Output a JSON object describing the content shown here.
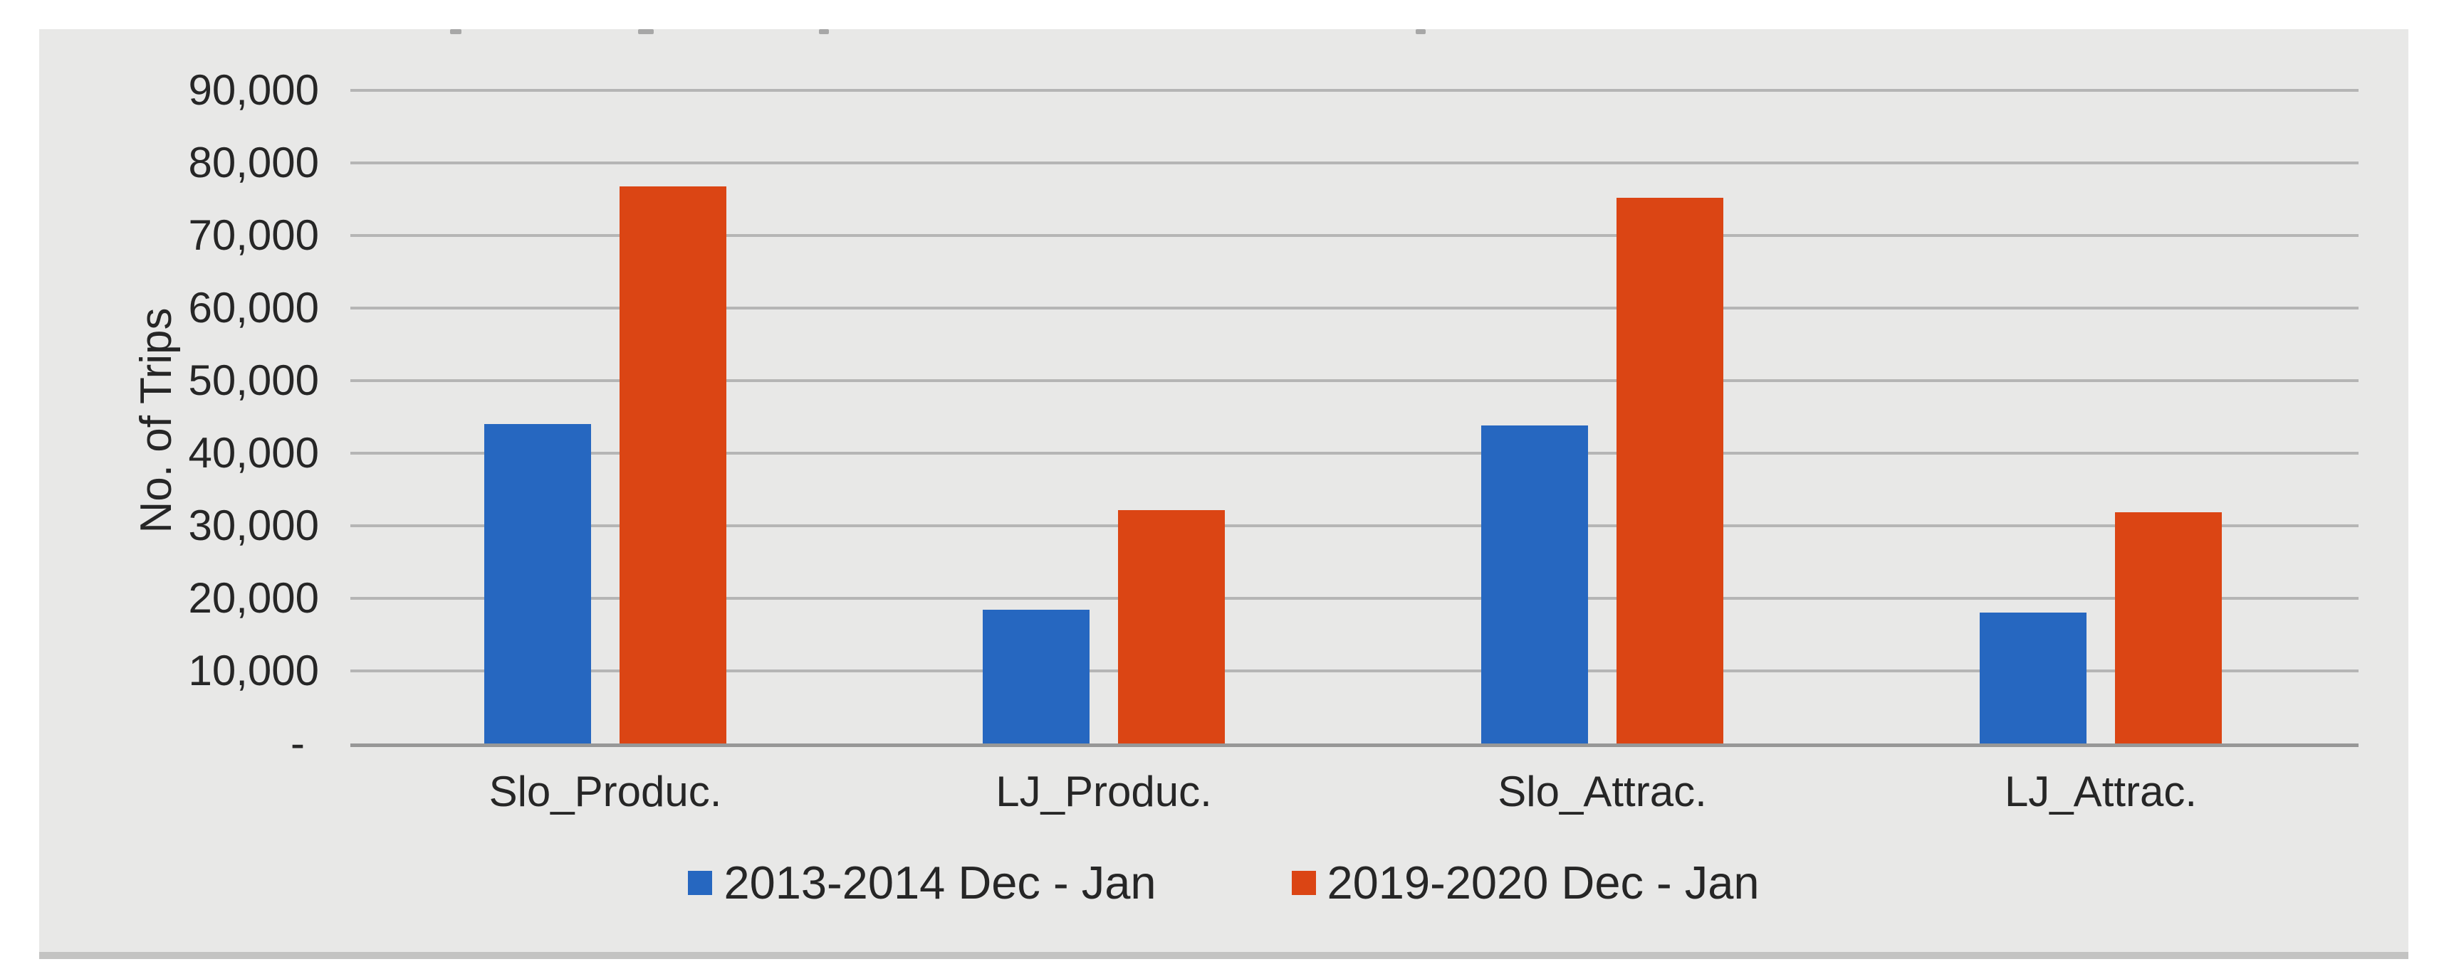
{
  "chart_data": {
    "type": "bar",
    "title": "",
    "categories": [
      "Slo_Produc.",
      "LJ_Produc.",
      "Slo_Attrac.",
      "LJ_Attrac."
    ],
    "series": [
      {
        "name": "2013-2014 Dec - Jan",
        "color": "#2667c0",
        "values": [
          44000,
          18400,
          43800,
          18000
        ]
      },
      {
        "name": "2019-2020 Dec - Jan",
        "color": "#db4514",
        "values": [
          76800,
          32200,
          75200,
          31900
        ]
      }
    ],
    "xlabel": "",
    "ylabel": "No. of Trips",
    "ylim": [
      0,
      90000
    ],
    "ytick_step": 10000,
    "ytick_labels": [
      "-",
      "10,000",
      "20,000",
      "30,000",
      "40,000",
      "50,000",
      "60,000",
      "70,000",
      "80,000",
      "90,000"
    ],
    "grid": "horizontal",
    "legend_position": "bottom"
  },
  "colors": {
    "canvas_bg": "#ffffff",
    "panel_bg": "#e8e8e7",
    "gridline": "#b5b5b5",
    "axis_line": "#979797",
    "text": "#262626",
    "panel_border_bottom": "#c3c3c2"
  }
}
